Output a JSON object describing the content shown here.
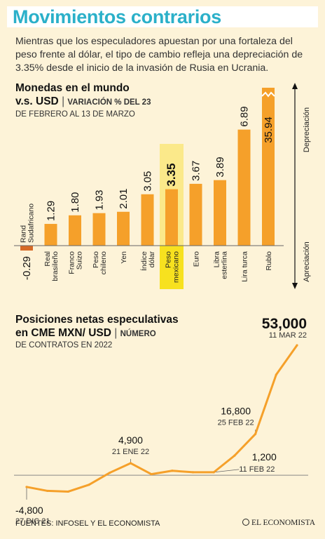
{
  "header": {
    "title": "Movimientos contrarios",
    "intro": "Mientras que los especuladores apuestan por una fortaleza del peso frente al dólar, el tipo de cambio refleja una depreciación de 3.35% desde el inicio de la invasión de Rusia en Ucrania."
  },
  "bar_section": {
    "heading_line1": "Monedas en el mundo",
    "heading_line2": "v.s. USD",
    "subtitle_a": "VARIACIÓN % DEL 23",
    "subtitle_b": "DE FEBRERO AL 13 DE MARZO"
  },
  "line_section": {
    "heading_line1": "Posiciones netas especulativas",
    "heading_line2": "en CME MXN/ USD",
    "subtitle_a": "NÚMERO",
    "subtitle_b": "DE CONTRATOS EN 2022"
  },
  "footer": {
    "source": "FUENTES: INFOSEL Y EL ECONOMISTA",
    "brand": "EL ECONOMISTA"
  },
  "chart_data": [
    {
      "type": "bar",
      "categories": [
        [
          "Rand",
          "Sudafricano"
        ],
        [
          "Real",
          "brasileño"
        ],
        [
          "Franco",
          "Suizo"
        ],
        [
          "Peso",
          "chileno"
        ],
        [
          "Yen"
        ],
        [
          "Índice",
          "dólar"
        ],
        [
          "Peso",
          "mexicano"
        ],
        [
          "Euro"
        ],
        [
          "Libra",
          "esterlina"
        ],
        [
          "Lira turca"
        ],
        [
          "Rublo"
        ]
      ],
      "values": [
        -0.29,
        1.29,
        1.8,
        1.93,
        2.01,
        3.05,
        3.35,
        3.67,
        3.89,
        6.89,
        35.94
      ],
      "value_labels": [
        "-0.29",
        "1.29",
        "1.80",
        "1.93",
        "2.01",
        "3.05",
        "3.35",
        "3.67",
        "3.89",
        "6.89",
        "35.94"
      ],
      "highlight_index": 6,
      "broken_axis_index": 10,
      "axis_labels": {
        "up": "Depreciación",
        "down": "Apreciación"
      },
      "colors": {
        "bar": "#f5a02a",
        "negative": "#d76a26",
        "highlight_bg": "#fbe98a",
        "highlight_label": "#f7e11f",
        "baseline": "#666666"
      }
    },
    {
      "type": "line",
      "x": [
        "27 DIC 21",
        "",
        "",
        "",
        "",
        "21 ENE 22",
        "",
        "",
        "",
        "11 FEB 22",
        "",
        "25 FEB 22",
        "",
        "11 MAR 22"
      ],
      "y": [
        -4800,
        -6400,
        -6700,
        -3900,
        1000,
        4900,
        400,
        1800,
        1200,
        1200,
        8000,
        16800,
        41000,
        53000
      ],
      "annotations": [
        {
          "index": 0,
          "value": "-4,800",
          "date": "27 DIC 21"
        },
        {
          "index": 5,
          "value": "4,900",
          "date": "21 ENE 22"
        },
        {
          "index": 9,
          "value": "1,200",
          "date": "11 FEB 22"
        },
        {
          "index": 11,
          "value": "16,800",
          "date": "25 FEB 22"
        },
        {
          "index": 13,
          "value": "53,000",
          "date": "11 MAR 22"
        }
      ],
      "ylim": [
        -8000,
        55000
      ],
      "colors": {
        "line": "#f5a02a",
        "zero_line": "#888888"
      }
    }
  ]
}
